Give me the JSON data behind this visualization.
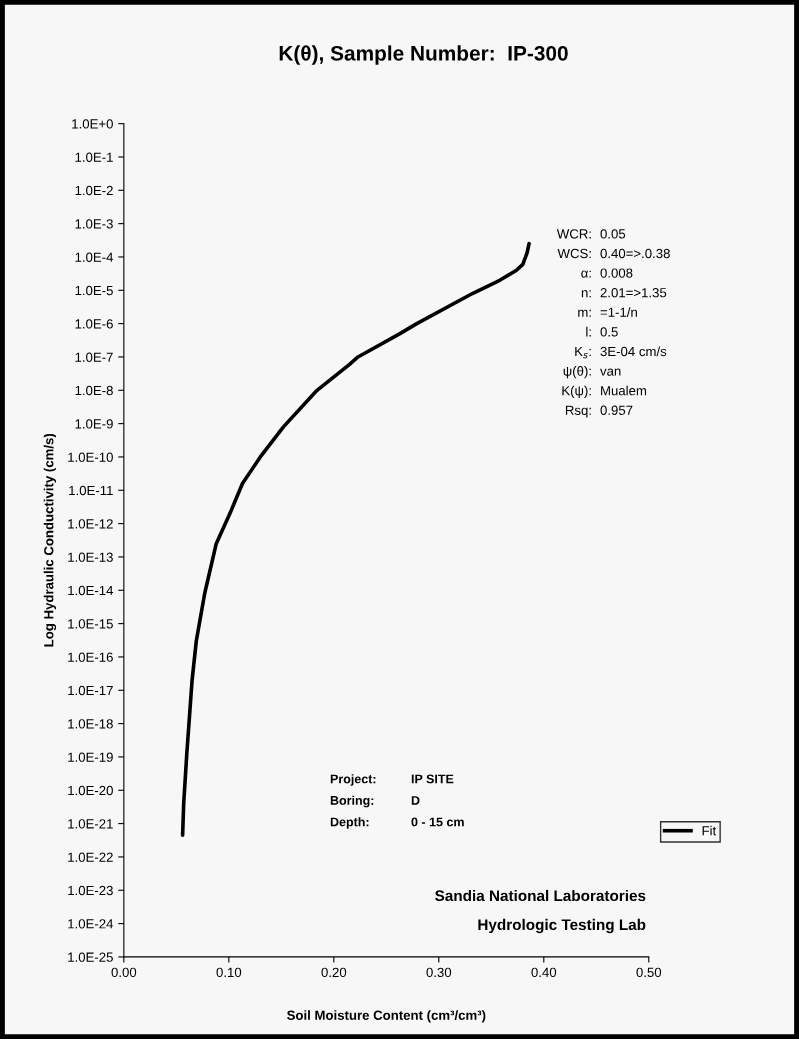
{
  "chart_data": {
    "type": "line",
    "title": "K(θ), Sample Number:  IP-300",
    "xlabel": "Soil Moisture Content (cm³/cm³)",
    "ylabel": "Log Hydraulic Conductivity (cm/s)",
    "log": "y",
    "grid": false,
    "legend": "right",
    "marker": "none",
    "line_style": "solid",
    "xlim": [
      0,
      0.5
    ],
    "xticks": [
      {
        "value": 0,
        "label": "0.00"
      },
      {
        "value": 0.1,
        "label": "0.10"
      },
      {
        "value": 0.2,
        "label": "0.20"
      },
      {
        "value": 0.3,
        "label": "0.30"
      },
      {
        "value": 0.4,
        "label": "0.40"
      },
      {
        "value": 0.5,
        "label": "0.50"
      }
    ],
    "ylim": [
      1e-25,
      1
    ],
    "yticks": [
      {
        "value": 1,
        "label": "1.0E+0"
      },
      {
        "value": 0.1,
        "label": "1.0E-1"
      },
      {
        "value": 0.01,
        "label": "1.0E-2"
      },
      {
        "value": 0.001,
        "label": "1.0E-3"
      },
      {
        "value": 0.0001,
        "label": "1.0E-4"
      },
      {
        "value": 1e-05,
        "label": "1.0E-5"
      },
      {
        "value": 1e-06,
        "label": "1.0E-6"
      },
      {
        "value": 1e-07,
        "label": "1.0E-7"
      },
      {
        "value": 1e-08,
        "label": "1.0E-8"
      },
      {
        "value": 1e-09,
        "label": "1.0E-9"
      },
      {
        "value": 1e-10,
        "label": "1.0E-10"
      },
      {
        "value": 1e-11,
        "label": "1.0E-11"
      },
      {
        "value": 1e-12,
        "label": "1.0E-12"
      },
      {
        "value": 1e-13,
        "label": "1.0E-13"
      },
      {
        "value": 1e-14,
        "label": "1.0E-14"
      },
      {
        "value": 1e-15,
        "label": "1.0E-15"
      },
      {
        "value": 1e-16,
        "label": "1.0E-16"
      },
      {
        "value": 1e-17,
        "label": "1.0E-17"
      },
      {
        "value": 1e-18,
        "label": "1.0E-18"
      },
      {
        "value": 1e-19,
        "label": "1.0E-19"
      },
      {
        "value": 1e-20,
        "label": "1.0E-20"
      },
      {
        "value": 1e-21,
        "label": "1.0E-21"
      },
      {
        "value": 1e-22,
        "label": "1.0E-22"
      },
      {
        "value": 1e-23,
        "label": "1.0E-23"
      },
      {
        "value": 1e-24,
        "label": "1.0E-24"
      },
      {
        "value": 1e-25,
        "label": "1.0E-25"
      }
    ],
    "x": [
      0.056,
      0.057,
      0.06,
      0.065,
      0.069,
      0.077,
      0.088,
      0.101,
      0.113,
      0.13,
      0.152,
      0.184,
      0.215,
      0.223,
      0.263,
      0.279,
      0.332,
      0.358,
      0.374,
      0.38,
      0.384,
      0.386
    ],
    "series": [
      {
        "name": "Fit",
        "color": "#000000",
        "values": [
          4.5e-22,
          4e-21,
          1.3e-19,
          2e-17,
          3e-16,
          8e-15,
          2.5e-13,
          2e-12,
          1.6e-11,
          1e-10,
          8e-10,
          1e-08,
          6e-08,
          1e-07,
          5e-07,
          1e-06,
          8e-06,
          2e-05,
          4e-05,
          6e-05,
          0.00013,
          0.00025
        ]
      }
    ],
    "annotations": [
      "WCR: 0.05",
      "WCS: 0.40=>.0.38",
      "α: 0.008",
      "n: 2.01=>1.35",
      "m: =1-1/n",
      "l: 0.5",
      "K$_{s}$: 3E-04 cm/s",
      "ψ(θ): van",
      "K(ψ): Mualem",
      "Rsq: 0.957",
      "Project: IP SITE",
      "Boring: D",
      "Depth: 0 - 15 cm",
      "Sandia National Laboratories",
      "Hydrologic Testing Lab"
    ]
  }
}
